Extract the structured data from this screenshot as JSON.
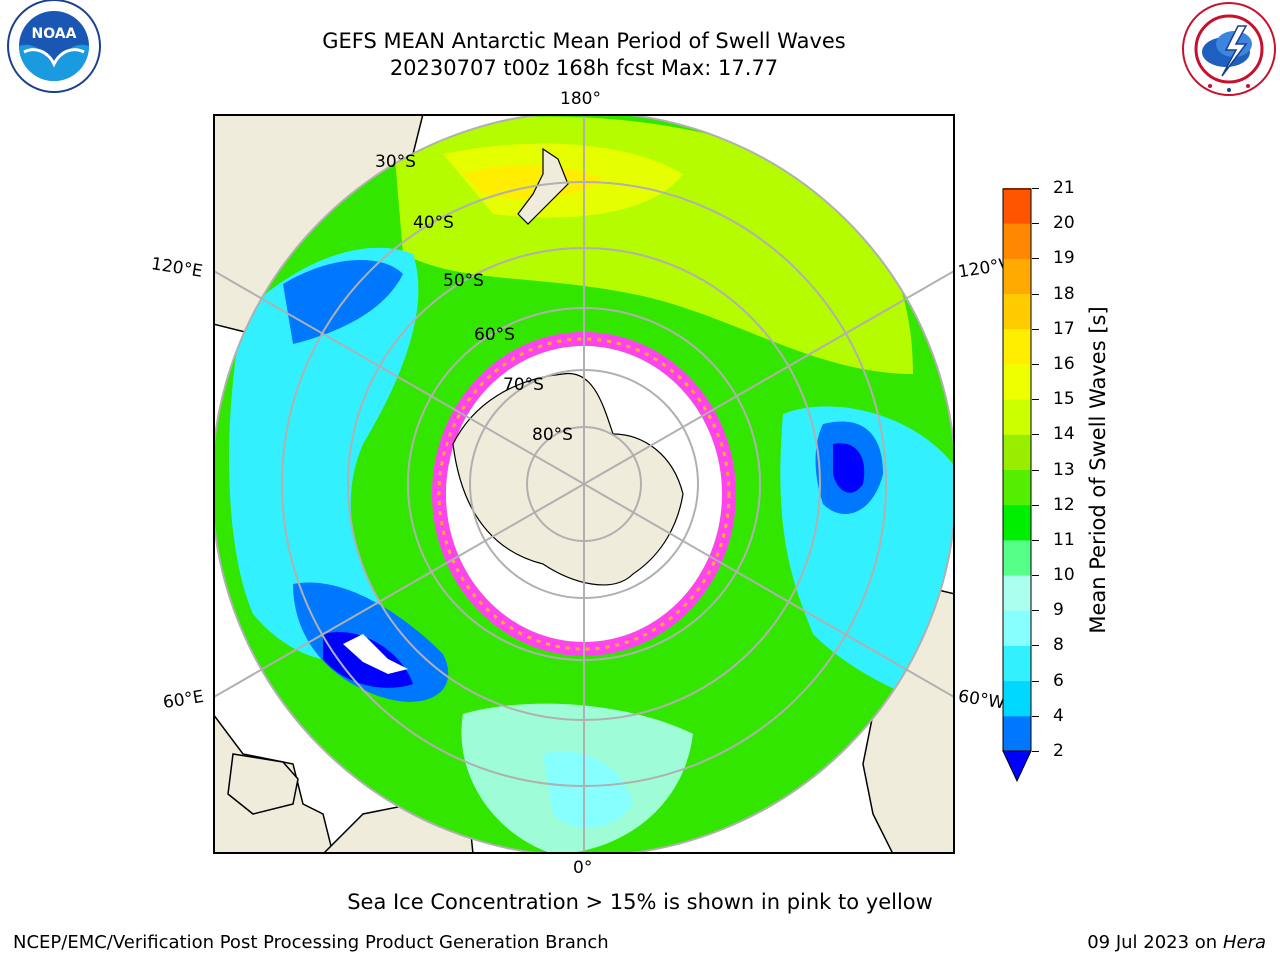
{
  "title_line1": "GEFS MEAN Antarctic Mean Period of Swell Waves",
  "title_line2": "20230707 t00z 168h fcst   Max: 17.77",
  "logos": {
    "noaa": {
      "text": "NOAA",
      "ring_text": "NATIONAL OCEANIC AND ATMOSPHERIC ADMINISTRATION · U.S. DEPARTMENT OF COMMERCE"
    },
    "nws": {
      "ring_text": "NATIONAL WEATHER SERVICE"
    }
  },
  "map": {
    "projection": "south-polar-stereographic",
    "lon_labels": {
      "top": "180°",
      "bottom": "0°",
      "left_upper": "120°E",
      "left_lower": "60°E",
      "right_upper": "120°W",
      "right_lower": "60°W"
    },
    "lat_labels": [
      "30°S",
      "40°S",
      "50°S",
      "60°S",
      "70°S",
      "80°S"
    ],
    "colors": {
      "land": "#efecdc",
      "grid": "#b0b0b0",
      "ice_edge": [
        "#ff44ee",
        "#ffaa33"
      ],
      "continent": "#ffffff"
    }
  },
  "colorbar": {
    "label": "Mean Period of Swell Waves [s]",
    "ticks": [
      "2",
      "4",
      "6",
      "8",
      "9",
      "10",
      "11",
      "12",
      "13",
      "14",
      "15",
      "16",
      "17",
      "18",
      "19",
      "20",
      "21"
    ],
    "colors": [
      "#0077ff",
      "#00d8ff",
      "#33f0ff",
      "#88ffff",
      "#aaffee",
      "#55ff88",
      "#00ee00",
      "#55ee00",
      "#99ee00",
      "#ccff00",
      "#eeff00",
      "#ffee00",
      "#ffcc00",
      "#ffaa00",
      "#ff8800",
      "#ff5500",
      "#ff2200",
      "#ff0000"
    ],
    "under_color": "#0000ff"
  },
  "caption": "Sea Ice Concentration > 15% is shown in pink to yellow",
  "credit": "NCEP/EMC/Verification Post Processing Product Generation Branch",
  "stamp": {
    "date": "09 Jul 2023 on",
    "host": "Hera"
  }
}
